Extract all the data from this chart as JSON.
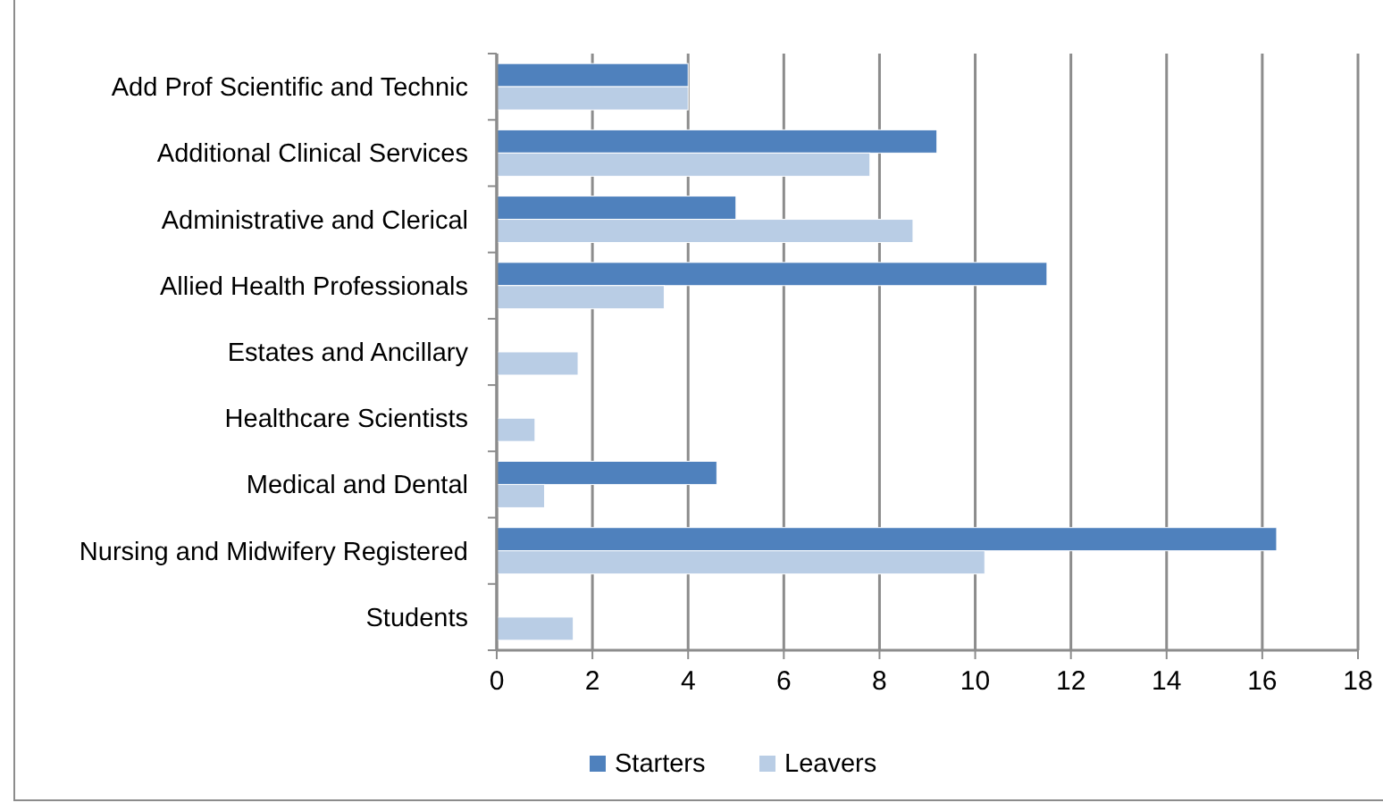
{
  "chart_data": {
    "type": "bar",
    "orientation": "horizontal",
    "categories": [
      "Add Prof Scientific and Technic",
      "Additional Clinical Services",
      "Administrative and Clerical",
      "Allied Health Professionals",
      "Estates and Ancillary",
      "Healthcare Scientists",
      "Medical and Dental",
      "Nursing and Midwifery Registered",
      "Students"
    ],
    "series": [
      {
        "name": "Starters",
        "color": "#4f81bd",
        "values": [
          4,
          9.2,
          5,
          11.5,
          null,
          null,
          4.6,
          16.3,
          null
        ]
      },
      {
        "name": "Leavers",
        "color": "#b9cde5",
        "values": [
          4,
          7.8,
          8.7,
          3.5,
          1.7,
          0.8,
          1.0,
          10.2,
          1.6
        ]
      }
    ],
    "xlim": [
      0,
      18
    ],
    "xticks": [
      0,
      2,
      4,
      6,
      8,
      10,
      12,
      14,
      16,
      18
    ],
    "grid": "x",
    "legend": "bottom"
  }
}
